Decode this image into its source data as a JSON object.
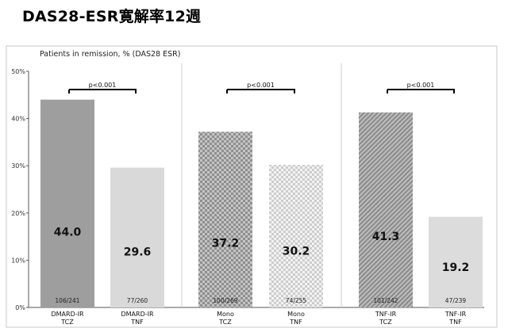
{
  "page_title": "DAS28-ESR寛解率12週",
  "chart_data": {
    "type": "bar",
    "subtitle": "Patients in remission, % (DAS28 ESR)",
    "ylim": [
      0,
      50
    ],
    "yticks": [
      "0%",
      "10%",
      "20%",
      "30%",
      "40%",
      "50%"
    ],
    "grid": false,
    "legend": "none",
    "categories": [
      [
        "DMARD-IR",
        "TCZ"
      ],
      [
        "DMARD-IR",
        "TNF"
      ],
      [
        "Mono",
        "TCZ"
      ],
      [
        "Mono",
        "TNF"
      ],
      [
        "TNF-IR",
        "TCZ"
      ],
      [
        "TNF-IR",
        "TNF"
      ]
    ],
    "values": [
      44.0,
      29.6,
      37.2,
      30.2,
      41.3,
      19.2
    ],
    "value_labels": [
      "44.0",
      "29.6",
      "37.2",
      "30.2",
      "41.3",
      "19.2"
    ],
    "n_labels": [
      "106/241",
      "77/260",
      "100/269",
      "74/255",
      "101/242",
      "47/239"
    ],
    "groups": [
      {
        "bars": [
          0,
          1
        ],
        "annotation": "p<0.001"
      },
      {
        "bars": [
          2,
          3
        ],
        "annotation": "p<0.001"
      },
      {
        "bars": [
          4,
          5
        ],
        "annotation": "p<0.001"
      }
    ],
    "bar_styles": [
      {
        "fill": "#9e9e9e",
        "pattern": "solid"
      },
      {
        "fill": "#d9d9d9",
        "pattern": "solid"
      },
      {
        "fill": "#b5b5b5",
        "pattern": "checker"
      },
      {
        "fill": "#e2e2e2",
        "pattern": "checker"
      },
      {
        "fill": "#a9a9a9",
        "pattern": "diagonal"
      },
      {
        "fill": "#dcdcdc",
        "pattern": "solid"
      }
    ]
  }
}
